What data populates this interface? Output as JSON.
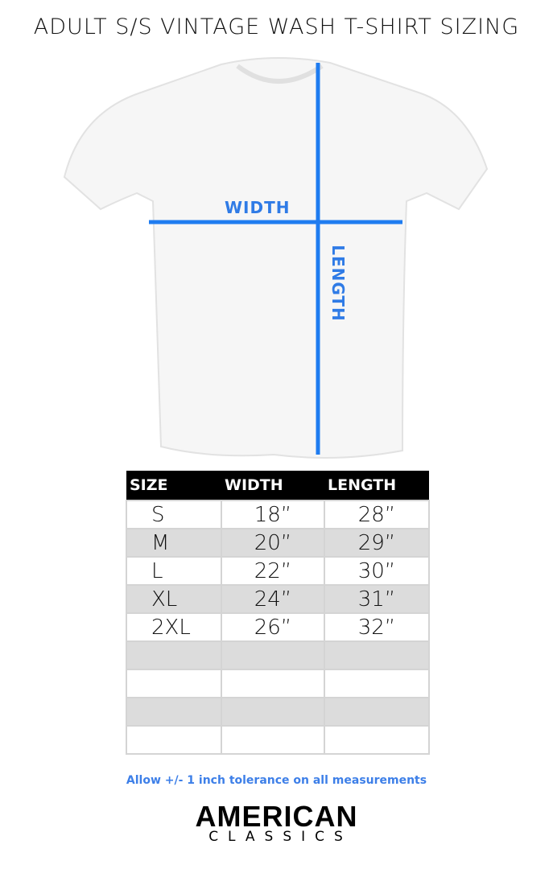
{
  "title": "ADULT S/S VINTAGE WASH T-SHIRT SIZING",
  "diagram": {
    "width_label": "WIDTH",
    "length_label": "LENGTH",
    "line_color": "#1f7cf0"
  },
  "table": {
    "headers": [
      "SIZE",
      "WIDTH",
      "LENGTH"
    ],
    "rows": [
      [
        "S",
        "18”",
        "28”"
      ],
      [
        "M",
        "20”",
        "29”"
      ],
      [
        "L",
        "22”",
        "30”"
      ],
      [
        "XL",
        "24”",
        "31”"
      ],
      [
        "2XL",
        "26”",
        "32”"
      ],
      [
        "",
        "",
        ""
      ],
      [
        "",
        "",
        ""
      ],
      [
        "",
        "",
        ""
      ],
      [
        "",
        "",
        ""
      ]
    ]
  },
  "note": "Allow +/- 1 inch tolerance on all measurements",
  "logo": {
    "line1": "AMERICAN",
    "line2": "CLASSICS"
  }
}
